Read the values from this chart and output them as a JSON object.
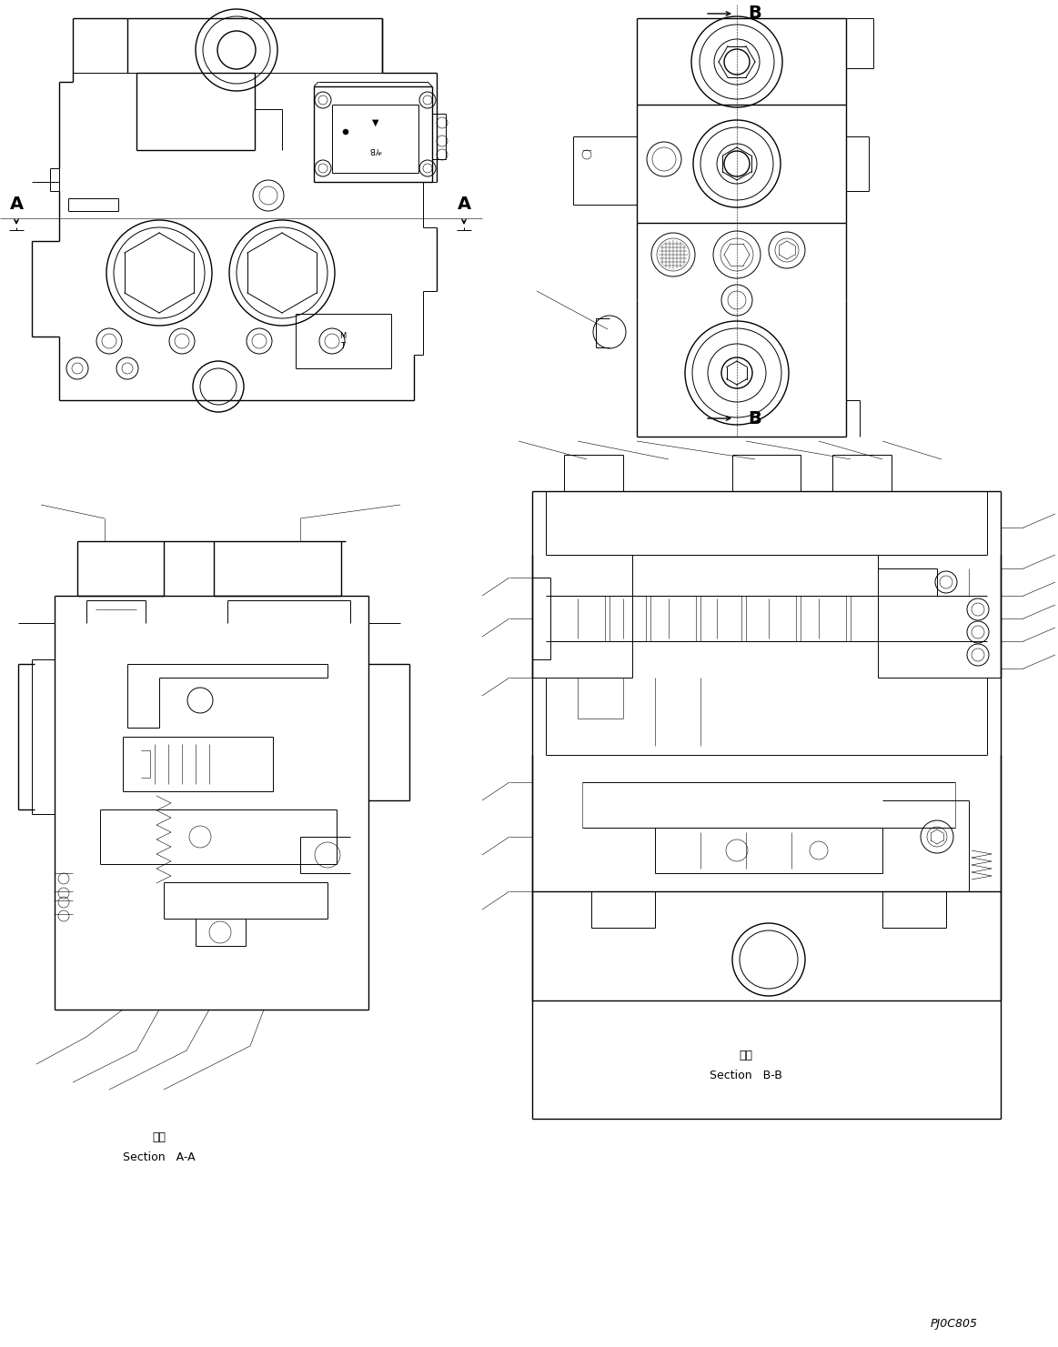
{
  "bg_color": "#ffffff",
  "line_color": "#000000",
  "fig_width": 11.63,
  "fig_height": 14.81,
  "dpi": 100,
  "label_A": "A",
  "label_B": "B",
  "label_section_aa": "Section   A-A",
  "label_section_bb": "Section   B-B",
  "label_kanji": "断面",
  "label_code": "PJ0C805"
}
